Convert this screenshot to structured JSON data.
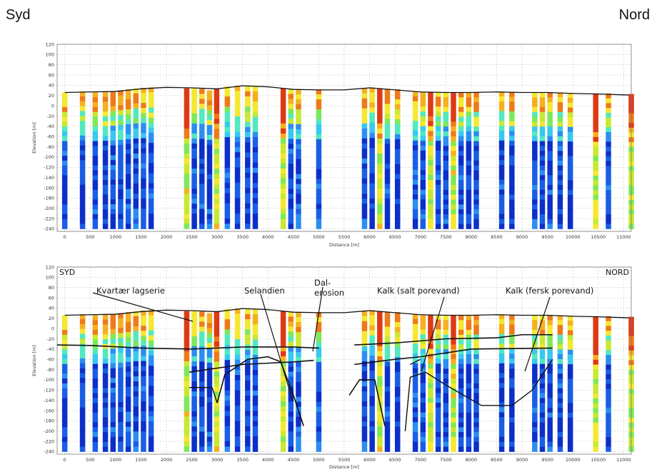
{
  "corners": {
    "left": "Syd",
    "right": "Nord"
  },
  "colors": {
    "plot_background": "#ffffff",
    "grid": "#c8c8c8",
    "frame": "#777777",
    "interpretation_line": "#111111",
    "resistivity_scale": [
      "#0c2fc8",
      "#1a5ee6",
      "#2b8ef0",
      "#38c8f0",
      "#52e8c0",
      "#7ee85a",
      "#c8e832",
      "#f4e830",
      "#f5b020",
      "#ee7a1a",
      "#dd3a14"
    ]
  },
  "chart_data": [
    {
      "type": "column-profile",
      "title": "",
      "xlabel": "Distance [m]",
      "ylabel": "Elevation [m]",
      "xlim": [
        -150,
        11150
      ],
      "ylim": [
        -245,
        120
      ],
      "grid": true,
      "x_ticks": [
        "0",
        "500",
        "1000",
        "1500",
        "2000",
        "2500",
        "3000",
        "3500",
        "4000",
        "4500",
        "5000",
        "5500",
        "6000",
        "6500",
        "7000",
        "7500",
        "8000",
        "8500",
        "9000",
        "9500",
        "10000",
        "10500",
        "11000"
      ],
      "y_ticks": [
        "120",
        "100",
        "80",
        "60",
        "40",
        "20",
        "0",
        "-20",
        "-40",
        "-60",
        "-80",
        "-100",
        "-120",
        "-140",
        "-160",
        "-180",
        "-200",
        "-220",
        "-240"
      ],
      "x_tick_values": [
        0,
        500,
        1000,
        1500,
        2000,
        2500,
        3000,
        3500,
        4000,
        4500,
        5000,
        5500,
        6000,
        6500,
        7000,
        7500,
        8000,
        8500,
        9000,
        9500,
        10000,
        10500,
        11000
      ],
      "y_tick_values": [
        120,
        100,
        80,
        60,
        40,
        20,
        0,
        -20,
        -40,
        -60,
        -80,
        -100,
        -120,
        -140,
        -160,
        -180,
        -200,
        -220,
        -240
      ],
      "columns_top": [
        [
          0,
          26,
          -240
        ],
        [
          350,
          28,
          -240
        ],
        [
          600,
          26,
          -240
        ],
        [
          800,
          27,
          -240
        ],
        [
          950,
          28,
          -240
        ],
        [
          1100,
          30,
          -240
        ],
        [
          1250,
          32,
          -240
        ],
        [
          1400,
          34,
          -240
        ],
        [
          1550,
          35,
          -240
        ],
        [
          1700,
          36,
          -240
        ],
        [
          2400,
          34,
          -240
        ],
        [
          2550,
          34,
          -240
        ],
        [
          2700,
          33,
          -240
        ],
        [
          2850,
          30,
          -240
        ],
        [
          2990,
          33,
          -240
        ],
        [
          3200,
          38,
          -240
        ],
        [
          3400,
          39,
          -240
        ],
        [
          3600,
          38,
          -240
        ],
        [
          3750,
          38,
          -240
        ],
        [
          4300,
          34,
          -240
        ],
        [
          4450,
          33,
          -240
        ],
        [
          4600,
          32,
          -240
        ],
        [
          5000,
          32,
          -240
        ],
        [
          5900,
          34,
          -240
        ],
        [
          6050,
          36,
          -240
        ],
        [
          6200,
          34,
          -240
        ],
        [
          6350,
          33,
          -240
        ],
        [
          6550,
          32,
          -240
        ],
        [
          6900,
          28,
          -240
        ],
        [
          7050,
          27,
          -240
        ],
        [
          7200,
          27,
          -240
        ],
        [
          7350,
          27,
          -240
        ],
        [
          7500,
          26,
          -240
        ],
        [
          7650,
          26,
          -240
        ],
        [
          7800,
          26,
          -240
        ],
        [
          7950,
          26,
          -240
        ],
        [
          8100,
          26,
          -240
        ],
        [
          8600,
          28,
          -240
        ],
        [
          8800,
          27,
          -240
        ],
        [
          9250,
          26,
          -240
        ],
        [
          9400,
          26,
          -240
        ],
        [
          9550,
          26,
          -240
        ],
        [
          9750,
          26,
          -240
        ],
        [
          9950,
          25,
          -240
        ],
        [
          10450,
          24,
          -240
        ],
        [
          10700,
          24,
          -240
        ],
        [
          11150,
          23,
          -240
        ]
      ],
      "surface_line": [
        [
          0,
          26
        ],
        [
          500,
          27
        ],
        [
          1000,
          28
        ],
        [
          1500,
          33
        ],
        [
          2000,
          36
        ],
        [
          2500,
          35
        ],
        [
          3000,
          33
        ],
        [
          3500,
          39
        ],
        [
          4000,
          37
        ],
        [
          4500,
          32
        ],
        [
          5000,
          31
        ],
        [
          5500,
          31
        ],
        [
          6000,
          35
        ],
        [
          6500,
          31
        ],
        [
          7000,
          27
        ],
        [
          7500,
          26
        ],
        [
          8000,
          26
        ],
        [
          8500,
          27
        ],
        [
          9000,
          26
        ],
        [
          9500,
          26
        ],
        [
          10000,
          24
        ],
        [
          10500,
          23
        ],
        [
          11100,
          21
        ]
      ]
    },
    {
      "type": "column-profile-interpreted",
      "title": "",
      "xlabel": "Distance [m]",
      "ylabel": "Elevation [m]",
      "xlim": [
        -150,
        11150
      ],
      "ylim": [
        -245,
        120
      ],
      "corner_labels": {
        "left": "SYD",
        "right": "NORD"
      },
      "annotations": [
        "Kvartær lagserie",
        "Selandien",
        "Dal-",
        "erosion",
        "Kalk (salt porevand)",
        "Kalk (fersk porevand)"
      ],
      "x_ticks": [
        "0",
        "500",
        "1000",
        "1500",
        "2000",
        "2500",
        "3000",
        "3500",
        "4000",
        "4500",
        "5000",
        "5500",
        "6000",
        "6500",
        "7000",
        "7500",
        "8000",
        "8500",
        "9000",
        "9500",
        "10000",
        "10500",
        "11000"
      ],
      "y_ticks": [
        "120",
        "100",
        "80",
        "60",
        "40",
        "20",
        "0",
        "-20",
        "-40",
        "-60",
        "-80",
        "-100",
        "-120",
        "-140",
        "-160",
        "-180",
        "-200",
        "-220",
        "-240"
      ],
      "quaternary_base": [
        [
          -150,
          -32
        ],
        [
          500,
          -33
        ],
        [
          1500,
          -38
        ],
        [
          2500,
          -40
        ],
        [
          3500,
          -36
        ],
        [
          4500,
          -36
        ],
        [
          5000,
          -38
        ]
      ],
      "quaternary_base_east": [
        [
          5700,
          -32
        ],
        [
          6500,
          -28
        ],
        [
          7500,
          -20
        ],
        [
          8500,
          -18
        ],
        [
          9000,
          -12
        ],
        [
          9600,
          -12
        ]
      ],
      "selandien_top": [
        [
          2450,
          -85
        ],
        [
          3500,
          -70
        ],
        [
          4500,
          -65
        ],
        [
          4900,
          -62
        ]
      ],
      "selandien_top_east": [
        [
          5700,
          -70
        ],
        [
          6500,
          -60
        ],
        [
          7000,
          -55
        ],
        [
          8000,
          -40
        ],
        [
          9600,
          -38
        ]
      ],
      "valley_wall_west": [
        [
          3000,
          -145
        ],
        [
          3150,
          -90
        ],
        [
          3600,
          -60
        ],
        [
          4000,
          -55
        ],
        [
          4250,
          -65
        ],
        [
          4500,
          -130
        ],
        [
          4700,
          -190
        ]
      ],
      "valley_wall_east": [
        [
          5600,
          -130
        ],
        [
          5800,
          -100
        ],
        [
          6100,
          -100
        ],
        [
          6300,
          -190
        ]
      ]
    }
  ]
}
